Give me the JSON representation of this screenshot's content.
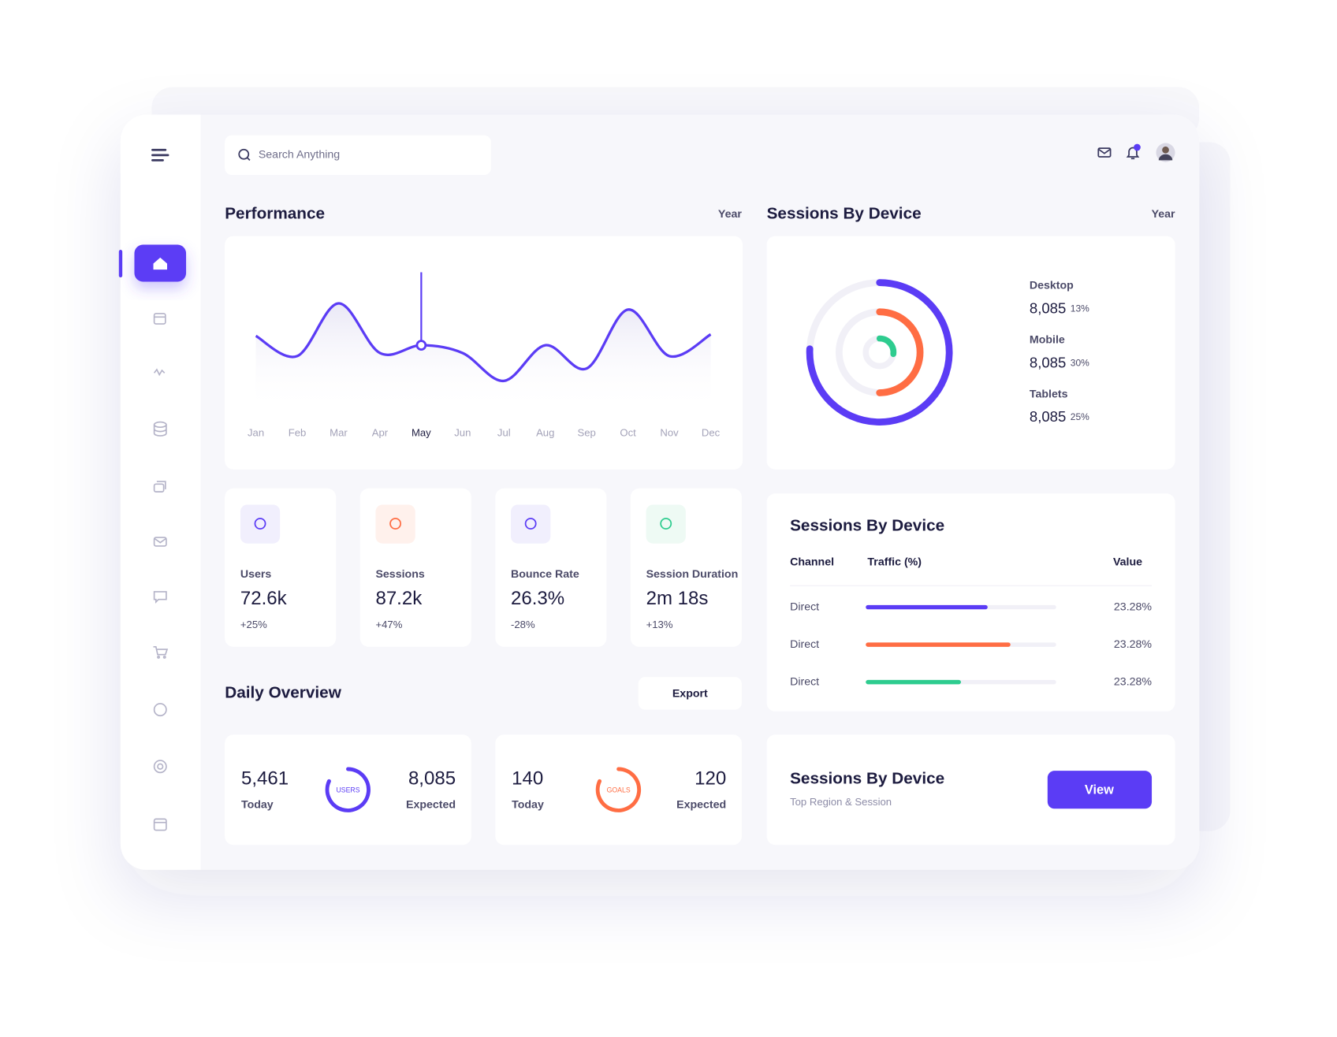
{
  "search": {
    "placeholder": "Search Anything"
  },
  "performance": {
    "title": "Performance",
    "period": "Year"
  },
  "chart_data": {
    "type": "line",
    "categories": [
      "Jan",
      "Feb",
      "Mar",
      "Apr",
      "May",
      "Jun",
      "Jul",
      "Aug",
      "Sep",
      "Oct",
      "Nov",
      "Dec"
    ],
    "values": [
      50,
      37,
      71,
      39,
      44,
      39,
      21,
      44,
      29,
      67,
      37,
      51
    ],
    "ylim": [
      0,
      100
    ],
    "color": "#5b3cf5",
    "highlight": "May"
  },
  "stats": [
    {
      "label": "Users",
      "value": "72.6k",
      "change": "+25%"
    },
    {
      "label": "Sessions",
      "value": "87.2k",
      "change": "+47%"
    },
    {
      "label": "Bounce Rate",
      "value": "26.3%",
      "change": "-28%"
    },
    {
      "label": "Session Duration",
      "value": "2m 18s",
      "change": "+13%"
    }
  ],
  "daily": {
    "title": "Daily Overview",
    "export": "Export",
    "cards": [
      {
        "today": "5,461",
        "today_label": "Today",
        "ring": "USERS",
        "expected": "8,085",
        "expected_label": "Expected"
      },
      {
        "today": "140",
        "today_label": "Today",
        "ring": "GOALS",
        "expected": "120",
        "expected_label": "Expected"
      }
    ]
  },
  "devices": {
    "title": "Sessions By Device",
    "period": "Year",
    "items": [
      {
        "name": "Desktop",
        "value": "8,085",
        "share": "13%"
      },
      {
        "name": "Mobile",
        "value": "8,085",
        "share": "30%"
      },
      {
        "name": "Tablets",
        "value": "8,085",
        "share": "25%"
      }
    ]
  },
  "table": {
    "title": "Sessions By Device",
    "headers": [
      "Channel",
      "Traffic (%)",
      "Value"
    ],
    "rows": [
      {
        "channel": "Direct",
        "traffic": 64,
        "value": "23.28%",
        "color": "#5b3cf5"
      },
      {
        "channel": "Direct",
        "traffic": 76,
        "value": "23.28%",
        "color": "#ff6d43"
      },
      {
        "channel": "Direct",
        "traffic": 50,
        "value": "23.28%",
        "color": "#2ecc8f"
      }
    ]
  },
  "promo": {
    "title": "Sessions By Device",
    "subtitle": "Top Region & Session",
    "button": "View"
  }
}
